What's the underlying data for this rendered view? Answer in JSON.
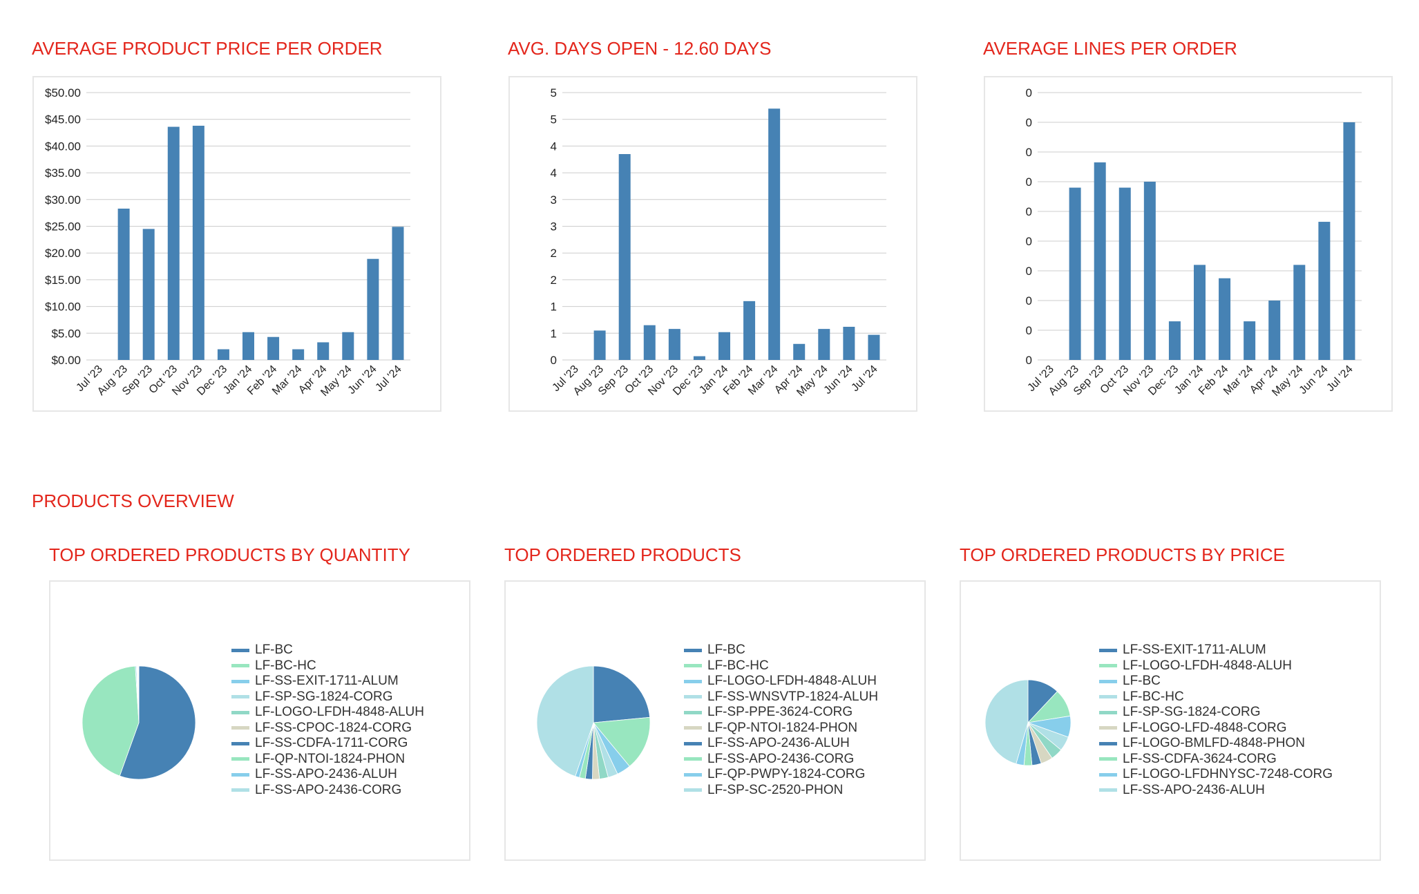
{
  "colors": {
    "title": "#e3261c",
    "bar": "#4682b4",
    "grid": "#cccccc",
    "palette": [
      "#4682b4",
      "#98e6bf",
      "#87ceeb",
      "#b0e0e6",
      "#90d8c6",
      "#d7d7c2",
      "#4682b4",
      "#98e6bf",
      "#87ceeb",
      "#b0e0e6"
    ]
  },
  "section_title": "PRODUCTS OVERVIEW",
  "chart_data": [
    {
      "id": "price",
      "type": "bar",
      "title": "AVERAGE PRODUCT PRICE PER ORDER",
      "categories": [
        "Jul '23",
        "Aug '23",
        "Sep '23",
        "Oct '23",
        "Nov '23",
        "Dec '23",
        "Jan '24",
        "Feb '24",
        "Mar '24",
        "Apr '24",
        "May '24",
        "Jun '24",
        "Jul '24"
      ],
      "values": [
        0,
        28.3,
        24.5,
        43.6,
        43.8,
        2.0,
        5.2,
        4.3,
        2.0,
        3.3,
        5.2,
        18.9,
        24.9
      ],
      "ylim": [
        0,
        50
      ],
      "yticks": [
        "$0.00",
        "$5.00",
        "$10.00",
        "$15.00",
        "$20.00",
        "$25.00",
        "$30.00",
        "$35.00",
        "$40.00",
        "$45.00",
        "$50.00"
      ],
      "grid": true
    },
    {
      "id": "days",
      "type": "bar",
      "title": "AVG. DAYS OPEN - 12.60 DAYS",
      "categories": [
        "Jul '23",
        "Aug '23",
        "Sep '23",
        "Oct '23",
        "Nov '23",
        "Dec '23",
        "Jan '24",
        "Feb '24",
        "Mar '24",
        "Apr '24",
        "May '24",
        "Jun '24",
        "Jul '24"
      ],
      "values": [
        0,
        0.55,
        3.85,
        0.65,
        0.58,
        0.07,
        0.52,
        1.1,
        4.7,
        0.3,
        0.58,
        0.62,
        0.47
      ],
      "ylim": [
        0,
        5
      ],
      "yticks": [
        "0",
        "1",
        "1",
        "2",
        "2",
        "3",
        "3",
        "4",
        "4",
        "5",
        "5"
      ],
      "grid": true
    },
    {
      "id": "lines",
      "type": "bar",
      "title": "AVERAGE LINES PER ORDER",
      "categories": [
        "Jul '23",
        "Aug '23",
        "Sep '23",
        "Oct '23",
        "Nov '23",
        "Dec '23",
        "Jan '24",
        "Feb '24",
        "Mar '24",
        "Apr '24",
        "May '24",
        "Jun '24",
        "Jul '24"
      ],
      "values": [
        0,
        0.58,
        0.665,
        0.58,
        0.6,
        0.13,
        0.32,
        0.275,
        0.13,
        0.2,
        0.32,
        0.465,
        0.8
      ],
      "ylim": [
        0,
        0.9
      ],
      "yticks": [
        "0",
        "0",
        "0",
        "0",
        "0",
        "0",
        "0",
        "0",
        "0",
        "0"
      ],
      "grid": true
    },
    {
      "id": "qty",
      "type": "pie",
      "title": "TOP ORDERED PRODUCTS BY QUANTITY",
      "labels": [
        "LF-BC",
        "LF-BC-HC",
        "LF-SS-EXIT-1711-ALUM",
        "LF-SP-SG-1824-CORG",
        "LF-LOGO-LFDH-4848-ALUH",
        "LF-SS-CPOC-1824-CORG",
        "LF-SS-CDFA-1711-CORG",
        "LF-QP-NTOI-1824-PHON",
        "LF-SS-APO-2436-ALUH",
        "LF-SS-APO-2436-CORG"
      ],
      "values": [
        55.5,
        43.5,
        0.3,
        0.2,
        0.1,
        0.1,
        0.1,
        0.1,
        0.05,
        0.05
      ],
      "legend": "right"
    },
    {
      "id": "orders",
      "type": "pie",
      "title": "TOP ORDERED PRODUCTS",
      "labels": [
        "LF-BC",
        "LF-BC-HC",
        "LF-LOGO-LFDH-4848-ALUH",
        "LF-SS-WNSVTP-1824-ALUH",
        "LF-SP-PPE-3624-CORG",
        "LF-QP-NTOI-1824-PHON",
        "LF-SS-APO-2436-ALUH",
        "LF-SS-APO-2436-CORG",
        "LF-QP-PWPY-1824-CORG",
        "LF-SP-SC-2520-PHON"
      ],
      "values": [
        23.5,
        15.5,
        4.0,
        2.8,
        2.5,
        2.0,
        2.0,
        1.7,
        1.2,
        44.8
      ],
      "legend": "right"
    },
    {
      "id": "price_pie",
      "type": "pie",
      "title": "TOP ORDERED PRODUCTS BY PRICE",
      "labels": [
        "LF-SS-EXIT-1711-ALUM",
        "LF-LOGO-LFDH-4848-ALUH",
        "LF-BC",
        "LF-BC-HC",
        "LF-SP-SG-1824-CORG",
        "LF-LOGO-LFD-4848-CORG",
        "LF-LOGO-BMLFD-4848-PHON",
        "LF-SS-CDFA-3624-CORG",
        "LF-LOGO-LFDHNYSC-7248-CORG",
        "LF-SS-APO-2436-ALUH"
      ],
      "values": [
        12.0,
        10.5,
        8.0,
        5.5,
        4.5,
        4.5,
        3.5,
        3.0,
        3.0,
        45.5
      ],
      "legend": "right"
    }
  ]
}
